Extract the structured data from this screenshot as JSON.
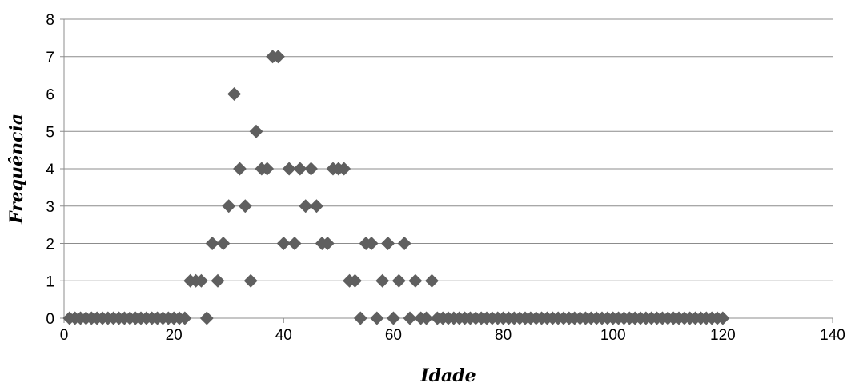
{
  "chart_data": {
    "type": "scatter",
    "title": "",
    "xlabel": "Idade",
    "ylabel": "Frequência",
    "xlim": [
      0,
      140
    ],
    "ylim": [
      0,
      8
    ],
    "x_ticks": [
      "0",
      "20",
      "40",
      "60",
      "80",
      "100",
      "120",
      "140"
    ],
    "y_ticks": [
      "0",
      "1",
      "2",
      "3",
      "4",
      "5",
      "6",
      "7",
      "8"
    ],
    "grid": "horizontal",
    "legend": "none",
    "marker": "diamond",
    "marker_color": "#5f5f5f",
    "series": [
      {
        "points": [
          [
            1,
            0
          ],
          [
            2,
            0
          ],
          [
            3,
            0
          ],
          [
            4,
            0
          ],
          [
            5,
            0
          ],
          [
            6,
            0
          ],
          [
            7,
            0
          ],
          [
            8,
            0
          ],
          [
            9,
            0
          ],
          [
            10,
            0
          ],
          [
            11,
            0
          ],
          [
            12,
            0
          ],
          [
            13,
            0
          ],
          [
            14,
            0
          ],
          [
            15,
            0
          ],
          [
            16,
            0
          ],
          [
            17,
            0
          ],
          [
            18,
            0
          ],
          [
            19,
            0
          ],
          [
            20,
            0
          ],
          [
            21,
            0
          ],
          [
            22,
            0
          ],
          [
            23,
            1
          ],
          [
            24,
            1
          ],
          [
            25,
            1
          ],
          [
            26,
            0
          ],
          [
            27,
            2
          ],
          [
            28,
            1
          ],
          [
            29,
            2
          ],
          [
            30,
            3
          ],
          [
            31,
            6
          ],
          [
            32,
            4
          ],
          [
            33,
            3
          ],
          [
            34,
            1
          ],
          [
            35,
            5
          ],
          [
            36,
            4
          ],
          [
            37,
            4
          ],
          [
            38,
            7
          ],
          [
            39,
            7
          ],
          [
            40,
            2
          ],
          [
            41,
            4
          ],
          [
            42,
            2
          ],
          [
            43,
            4
          ],
          [
            44,
            3
          ],
          [
            45,
            4
          ],
          [
            46,
            3
          ],
          [
            47,
            2
          ],
          [
            48,
            2
          ],
          [
            49,
            4
          ],
          [
            50,
            4
          ],
          [
            51,
            4
          ],
          [
            52,
            1
          ],
          [
            53,
            1
          ],
          [
            54,
            0
          ],
          [
            55,
            2
          ],
          [
            56,
            2
          ],
          [
            57,
            0
          ],
          [
            58,
            1
          ],
          [
            59,
            2
          ],
          [
            60,
            0
          ],
          [
            61,
            1
          ],
          [
            62,
            2
          ],
          [
            63,
            0
          ],
          [
            64,
            1
          ],
          [
            65,
            0
          ],
          [
            66,
            0
          ],
          [
            67,
            1
          ],
          [
            68,
            0
          ],
          [
            69,
            0
          ],
          [
            70,
            0
          ],
          [
            71,
            0
          ],
          [
            72,
            0
          ],
          [
            73,
            0
          ],
          [
            74,
            0
          ],
          [
            75,
            0
          ],
          [
            76,
            0
          ],
          [
            77,
            0
          ],
          [
            78,
            0
          ],
          [
            79,
            0
          ],
          [
            80,
            0
          ],
          [
            81,
            0
          ],
          [
            82,
            0
          ],
          [
            83,
            0
          ],
          [
            84,
            0
          ],
          [
            85,
            0
          ],
          [
            86,
            0
          ],
          [
            87,
            0
          ],
          [
            88,
            0
          ],
          [
            89,
            0
          ],
          [
            90,
            0
          ],
          [
            91,
            0
          ],
          [
            92,
            0
          ],
          [
            93,
            0
          ],
          [
            94,
            0
          ],
          [
            95,
            0
          ],
          [
            96,
            0
          ],
          [
            97,
            0
          ],
          [
            98,
            0
          ],
          [
            99,
            0
          ],
          [
            100,
            0
          ],
          [
            101,
            0
          ],
          [
            102,
            0
          ],
          [
            103,
            0
          ],
          [
            104,
            0
          ],
          [
            105,
            0
          ],
          [
            106,
            0
          ],
          [
            107,
            0
          ],
          [
            108,
            0
          ],
          [
            109,
            0
          ],
          [
            110,
            0
          ],
          [
            111,
            0
          ],
          [
            112,
            0
          ],
          [
            113,
            0
          ],
          [
            114,
            0
          ],
          [
            115,
            0
          ],
          [
            116,
            0
          ],
          [
            117,
            0
          ],
          [
            118,
            0
          ],
          [
            119,
            0
          ],
          [
            120,
            0
          ]
        ]
      }
    ]
  }
}
